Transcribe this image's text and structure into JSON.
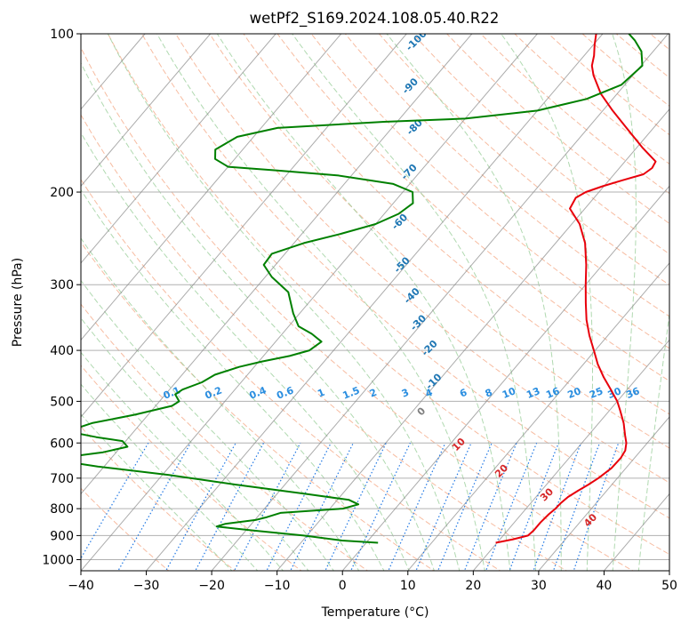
{
  "chart_data": {
    "type": "line",
    "chart_kind": "skew-T log-P diagram",
    "title": "wetPf2_S169.2024.108.05.40.R22",
    "xlabel": "Temperature (°C)",
    "ylabel": "Pressure (hPa)",
    "xlim": [
      -40,
      50
    ],
    "ylim": [
      1050,
      100
    ],
    "y_scale": "log",
    "grid": true,
    "x_ticks": [
      -40,
      -30,
      -20,
      -10,
      0,
      10,
      20,
      30,
      40,
      50
    ],
    "x_tick_labels": [
      "−40",
      "−30",
      "−20",
      "−10",
      "0",
      "10",
      "20",
      "30",
      "40",
      "50"
    ],
    "y_ticks": [
      1000,
      900,
      800,
      700,
      600,
      500,
      400,
      300,
      200,
      100
    ],
    "y_tick_labels": [
      "1000",
      "900",
      "800",
      "700",
      "600",
      "500",
      "400",
      "300",
      "200",
      "100"
    ],
    "series": [
      {
        "color": "#e8000b",
        "points": [
          [
            929,
            19.8
          ],
          [
            915,
            22.0
          ],
          [
            900,
            23.8
          ],
          [
            880,
            24.0
          ],
          [
            850,
            24.0
          ],
          [
            820,
            24.2
          ],
          [
            800,
            24.5
          ],
          [
            780,
            24.6
          ],
          [
            760,
            24.9
          ],
          [
            740,
            25.6
          ],
          [
            720,
            26.4
          ],
          [
            700,
            27.1
          ],
          [
            670,
            27.8
          ],
          [
            640,
            27.9
          ],
          [
            620,
            27.6
          ],
          [
            600,
            26.8
          ],
          [
            580,
            25.6
          ],
          [
            550,
            23.8
          ],
          [
            520,
            21.6
          ],
          [
            500,
            20.0
          ],
          [
            475,
            17.5
          ],
          [
            450,
            14.8
          ],
          [
            425,
            12.2
          ],
          [
            400,
            9.8
          ],
          [
            375,
            7.2
          ],
          [
            350,
            4.7
          ],
          [
            325,
            2.4
          ],
          [
            300,
            0.0
          ],
          [
            275,
            -2.5
          ],
          [
            250,
            -5.5
          ],
          [
            230,
            -8.8
          ],
          [
            215,
            -12.3
          ],
          [
            205,
            -12.8
          ],
          [
            200,
            -12.0
          ],
          [
            195,
            -10.2
          ],
          [
            190,
            -8.0
          ],
          [
            185,
            -5.5
          ],
          [
            180,
            -5.0
          ],
          [
            175,
            -5.3
          ],
          [
            165,
            -9.0
          ],
          [
            150,
            -14.5
          ],
          [
            140,
            -18.5
          ],
          [
            130,
            -22.5
          ],
          [
            120,
            -26.0
          ],
          [
            115,
            -27.5
          ],
          [
            110,
            -28.5
          ],
          [
            105,
            -29.8
          ],
          [
            100,
            -31.0
          ]
        ]
      },
      {
        "color": "#008000",
        "points": [
          [
            929,
            1.8
          ],
          [
            920,
            -4.0
          ],
          [
            900,
            -10.5
          ],
          [
            880,
            -19.0
          ],
          [
            865,
            -25.0
          ],
          [
            855,
            -24.0
          ],
          [
            840,
            -19.8
          ],
          [
            830,
            -18.5
          ],
          [
            815,
            -17.0
          ],
          [
            800,
            -8.0
          ],
          [
            785,
            -6.2
          ],
          [
            770,
            -8.2
          ],
          [
            750,
            -15.5
          ],
          [
            720,
            -27.5
          ],
          [
            690,
            -39.0
          ],
          [
            665,
            -51.0
          ],
          [
            650,
            -57.0
          ],
          [
            640,
            -57.5
          ],
          [
            625,
            -52.0
          ],
          [
            610,
            -49.0
          ],
          [
            595,
            -50.5
          ],
          [
            585,
            -55.0
          ],
          [
            575,
            -58.5
          ],
          [
            565,
            -59.5
          ],
          [
            550,
            -57.5
          ],
          [
            530,
            -52.0
          ],
          [
            510,
            -47.5
          ],
          [
            500,
            -47.0
          ],
          [
            485,
            -48.5
          ],
          [
            475,
            -48.0
          ],
          [
            460,
            -46.0
          ],
          [
            445,
            -45.0
          ],
          [
            430,
            -42.3
          ],
          [
            420,
            -39.5
          ],
          [
            410,
            -36.0
          ],
          [
            400,
            -33.7
          ],
          [
            385,
            -33.0
          ],
          [
            372,
            -35.5
          ],
          [
            360,
            -38.5
          ],
          [
            340,
            -41.0
          ],
          [
            310,
            -44.5
          ],
          [
            290,
            -49.0
          ],
          [
            275,
            -51.8
          ],
          [
            262,
            -52.0
          ],
          [
            250,
            -48.5
          ],
          [
            240,
            -44.0
          ],
          [
            230,
            -40.0
          ],
          [
            220,
            -37.8
          ],
          [
            210,
            -37.0
          ],
          [
            200,
            -38.5
          ],
          [
            193,
            -42.5
          ],
          [
            186,
            -52.0
          ],
          [
            182,
            -62.0
          ],
          [
            179,
            -70.0
          ],
          [
            173,
            -73.0
          ],
          [
            166,
            -74.2
          ],
          [
            157,
            -72.5
          ],
          [
            151,
            -67.5
          ],
          [
            147,
            -52.0
          ],
          [
            145,
            -40.0
          ],
          [
            140,
            -30.0
          ],
          [
            133,
            -24.0
          ],
          [
            125,
            -20.5
          ],
          [
            115,
            -19.8
          ],
          [
            108,
            -21.8
          ],
          [
            103,
            -24.2
          ],
          [
            100,
            -26.0
          ]
        ]
      }
    ],
    "dry_adiabat_labels": [
      "-100",
      "-90",
      "-80",
      "-70",
      "-60",
      "-50",
      "-40",
      "-30",
      "-20",
      "-10"
    ],
    "mixing_ratio_labels": [
      "0.1",
      "0.2",
      "0.4",
      "0.6",
      "1",
      "1.5",
      "2",
      "3",
      "4",
      "6",
      "8",
      "10",
      "13",
      "16",
      "20",
      "25",
      "30",
      "36"
    ],
    "moist_adiabat_labels": [
      "0",
      "10",
      "20",
      "30",
      "40"
    ]
  },
  "colors": {
    "temperature": "#e8000b",
    "dewpoint": "#008000",
    "dry_adiabat": "#f4a582",
    "moist_adiabat": "#9ccf9c",
    "mixing_ratio": "#1f77e4",
    "isotherm": "#888888",
    "label_blue": "#1f77b4",
    "label_red": "#d62728"
  }
}
